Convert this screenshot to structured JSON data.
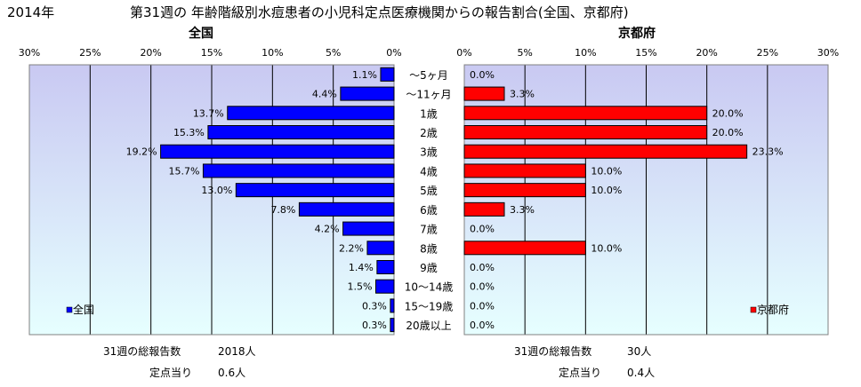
{
  "header": {
    "year": "2014年",
    "title": "第31週の 年齢階級別水痘患者の小児科定点医療機関からの報告割合(全国、京都府)"
  },
  "chart_data": [
    {
      "type": "bar",
      "orientation": "horizontal",
      "direction": "leftward",
      "title": "全国",
      "xlim": [
        0,
        30
      ],
      "xticks": [
        "30%",
        "25%",
        "20%",
        "15%",
        "10%",
        "5%",
        "0%"
      ],
      "categories": [
        "～5ヶ月",
        "～11ヶ月",
        "1歳",
        "2歳",
        "3歳",
        "4歳",
        "5歳",
        "6歳",
        "7歳",
        "8歳",
        "9歳",
        "10～14歳",
        "15～19歳",
        "20歳以上"
      ],
      "series": [
        {
          "name": "全国",
          "color": "#0000ff",
          "values": [
            1.1,
            4.4,
            13.7,
            15.3,
            19.2,
            15.7,
            13.0,
            7.8,
            4.2,
            2.2,
            1.4,
            1.5,
            0.3,
            0.3
          ],
          "labels": [
            "1.1%",
            "4.4%",
            "13.7%",
            "15.3%",
            "19.2%",
            "15.7%",
            "13.0%",
            "7.8%",
            "4.2%",
            "2.2%",
            "1.4%",
            "1.5%",
            "0.3%",
            "0.3%"
          ]
        }
      ],
      "legend": "bottom-left",
      "grid": true
    },
    {
      "type": "bar",
      "orientation": "horizontal",
      "direction": "rightward",
      "title": "京都府",
      "xlim": [
        0,
        30
      ],
      "xticks": [
        "0%",
        "5%",
        "10%",
        "15%",
        "20%",
        "25%",
        "30%"
      ],
      "categories": [
        "～5ヶ月",
        "～11ヶ月",
        "1歳",
        "2歳",
        "3歳",
        "4歳",
        "5歳",
        "6歳",
        "7歳",
        "8歳",
        "9歳",
        "10～14歳",
        "15～19歳",
        "20歳以上"
      ],
      "series": [
        {
          "name": "京都府",
          "color": "#ff0000",
          "values": [
            0.0,
            3.3,
            20.0,
            20.0,
            23.3,
            10.0,
            10.0,
            3.3,
            0.0,
            10.0,
            0.0,
            0.0,
            0.0,
            0.0
          ],
          "labels": [
            "0.0%",
            "3.3%",
            "20.0%",
            "20.0%",
            "23.3%",
            "10.0%",
            "10.0%",
            "3.3%",
            "0.0%",
            "10.0%",
            "0.0%",
            "0.0%",
            "0.0%",
            "0.0%"
          ]
        }
      ],
      "legend": "bottom-right",
      "grid": true
    }
  ],
  "footer": {
    "national_total_label": "31週の総報告数",
    "national_total_value": "2018人",
    "national_per_label": "定点当り",
    "national_per_value": "0.6人",
    "kyoto_total_label": "31週の総報告数",
    "kyoto_total_value": "30人",
    "kyoto_per_label": "定点当り",
    "kyoto_per_value": "0.4人"
  },
  "colors": {
    "plot_bg_top": "#c9c9f2",
    "plot_bg_bottom": "#e6ffff",
    "national_bar": "#0000ff",
    "kyoto_bar": "#ff0000"
  }
}
